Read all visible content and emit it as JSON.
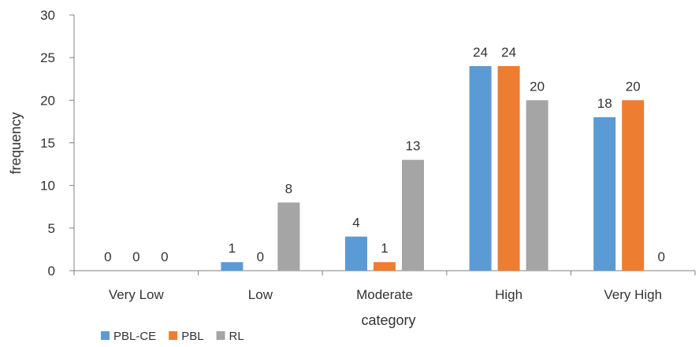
{
  "chart_data": {
    "type": "bar",
    "categories": [
      "Very Low",
      "Low",
      "Moderate",
      "High",
      "Very High"
    ],
    "series": [
      {
        "name": "PBL-CE",
        "values": [
          0,
          1,
          4,
          24,
          18
        ],
        "color": "#5B9BD5"
      },
      {
        "name": "PBL",
        "values": [
          0,
          0,
          1,
          24,
          20
        ],
        "color": "#ED7D31"
      },
      {
        "name": "RL",
        "values": [
          0,
          8,
          13,
          20,
          0
        ],
        "color": "#A5A5A5"
      }
    ],
    "xlabel": "category",
    "ylabel": "frequency",
    "ylim": [
      0,
      30
    ],
    "yticks": [
      0,
      5,
      10,
      15,
      20,
      25,
      30
    ],
    "grid": false,
    "data_labels": true,
    "legend": "bottom-left"
  }
}
